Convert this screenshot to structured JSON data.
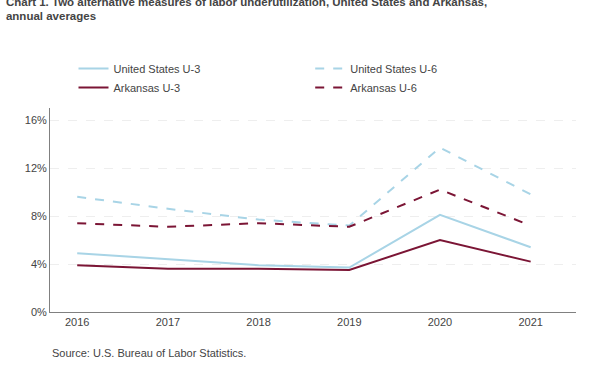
{
  "chart_data": {
    "type": "line",
    "title": "Chart 1. Two alternative measures of labor underutilization, United States and Arkansas,",
    "subtitle": "annual averages",
    "annotations": [
      "Source: U.S. Bureau of Labor Statistics."
    ],
    "x": [
      2016,
      2017,
      2018,
      2019,
      2020,
      2021
    ],
    "series": [
      {
        "name": "United States U-3",
        "color": "#a8d4e6",
        "line_style": "solid",
        "values": [
          4.9,
          4.4,
          3.9,
          3.7,
          8.1,
          5.4
        ]
      },
      {
        "name": "United States U-6",
        "color": "#a8d4e6",
        "line_style": "dashed",
        "values": [
          9.6,
          8.6,
          7.7,
          7.2,
          13.7,
          9.8
        ]
      },
      {
        "name": "Arkansas U-3",
        "color": "#7b1535",
        "line_style": "solid",
        "values": [
          3.9,
          3.6,
          3.6,
          3.5,
          6.0,
          4.2
        ]
      },
      {
        "name": "Arkansas U-6",
        "color": "#7b1535",
        "line_style": "dashed",
        "values": [
          7.4,
          7.1,
          7.4,
          7.1,
          10.2,
          7.2
        ]
      }
    ],
    "xlim": [
      2015.7,
      2021.5
    ],
    "xticks": [
      2016,
      2017,
      2018,
      2019,
      2020,
      2021
    ],
    "ylim": [
      0,
      17
    ],
    "yticks": [
      {
        "value": 0,
        "label": "0%"
      },
      {
        "value": 4,
        "label": "4%"
      },
      {
        "value": 8,
        "label": "8%"
      },
      {
        "value": 12,
        "label": "12%"
      },
      {
        "value": 16,
        "label": "16%"
      }
    ],
    "grid": true,
    "legend": "top"
  }
}
